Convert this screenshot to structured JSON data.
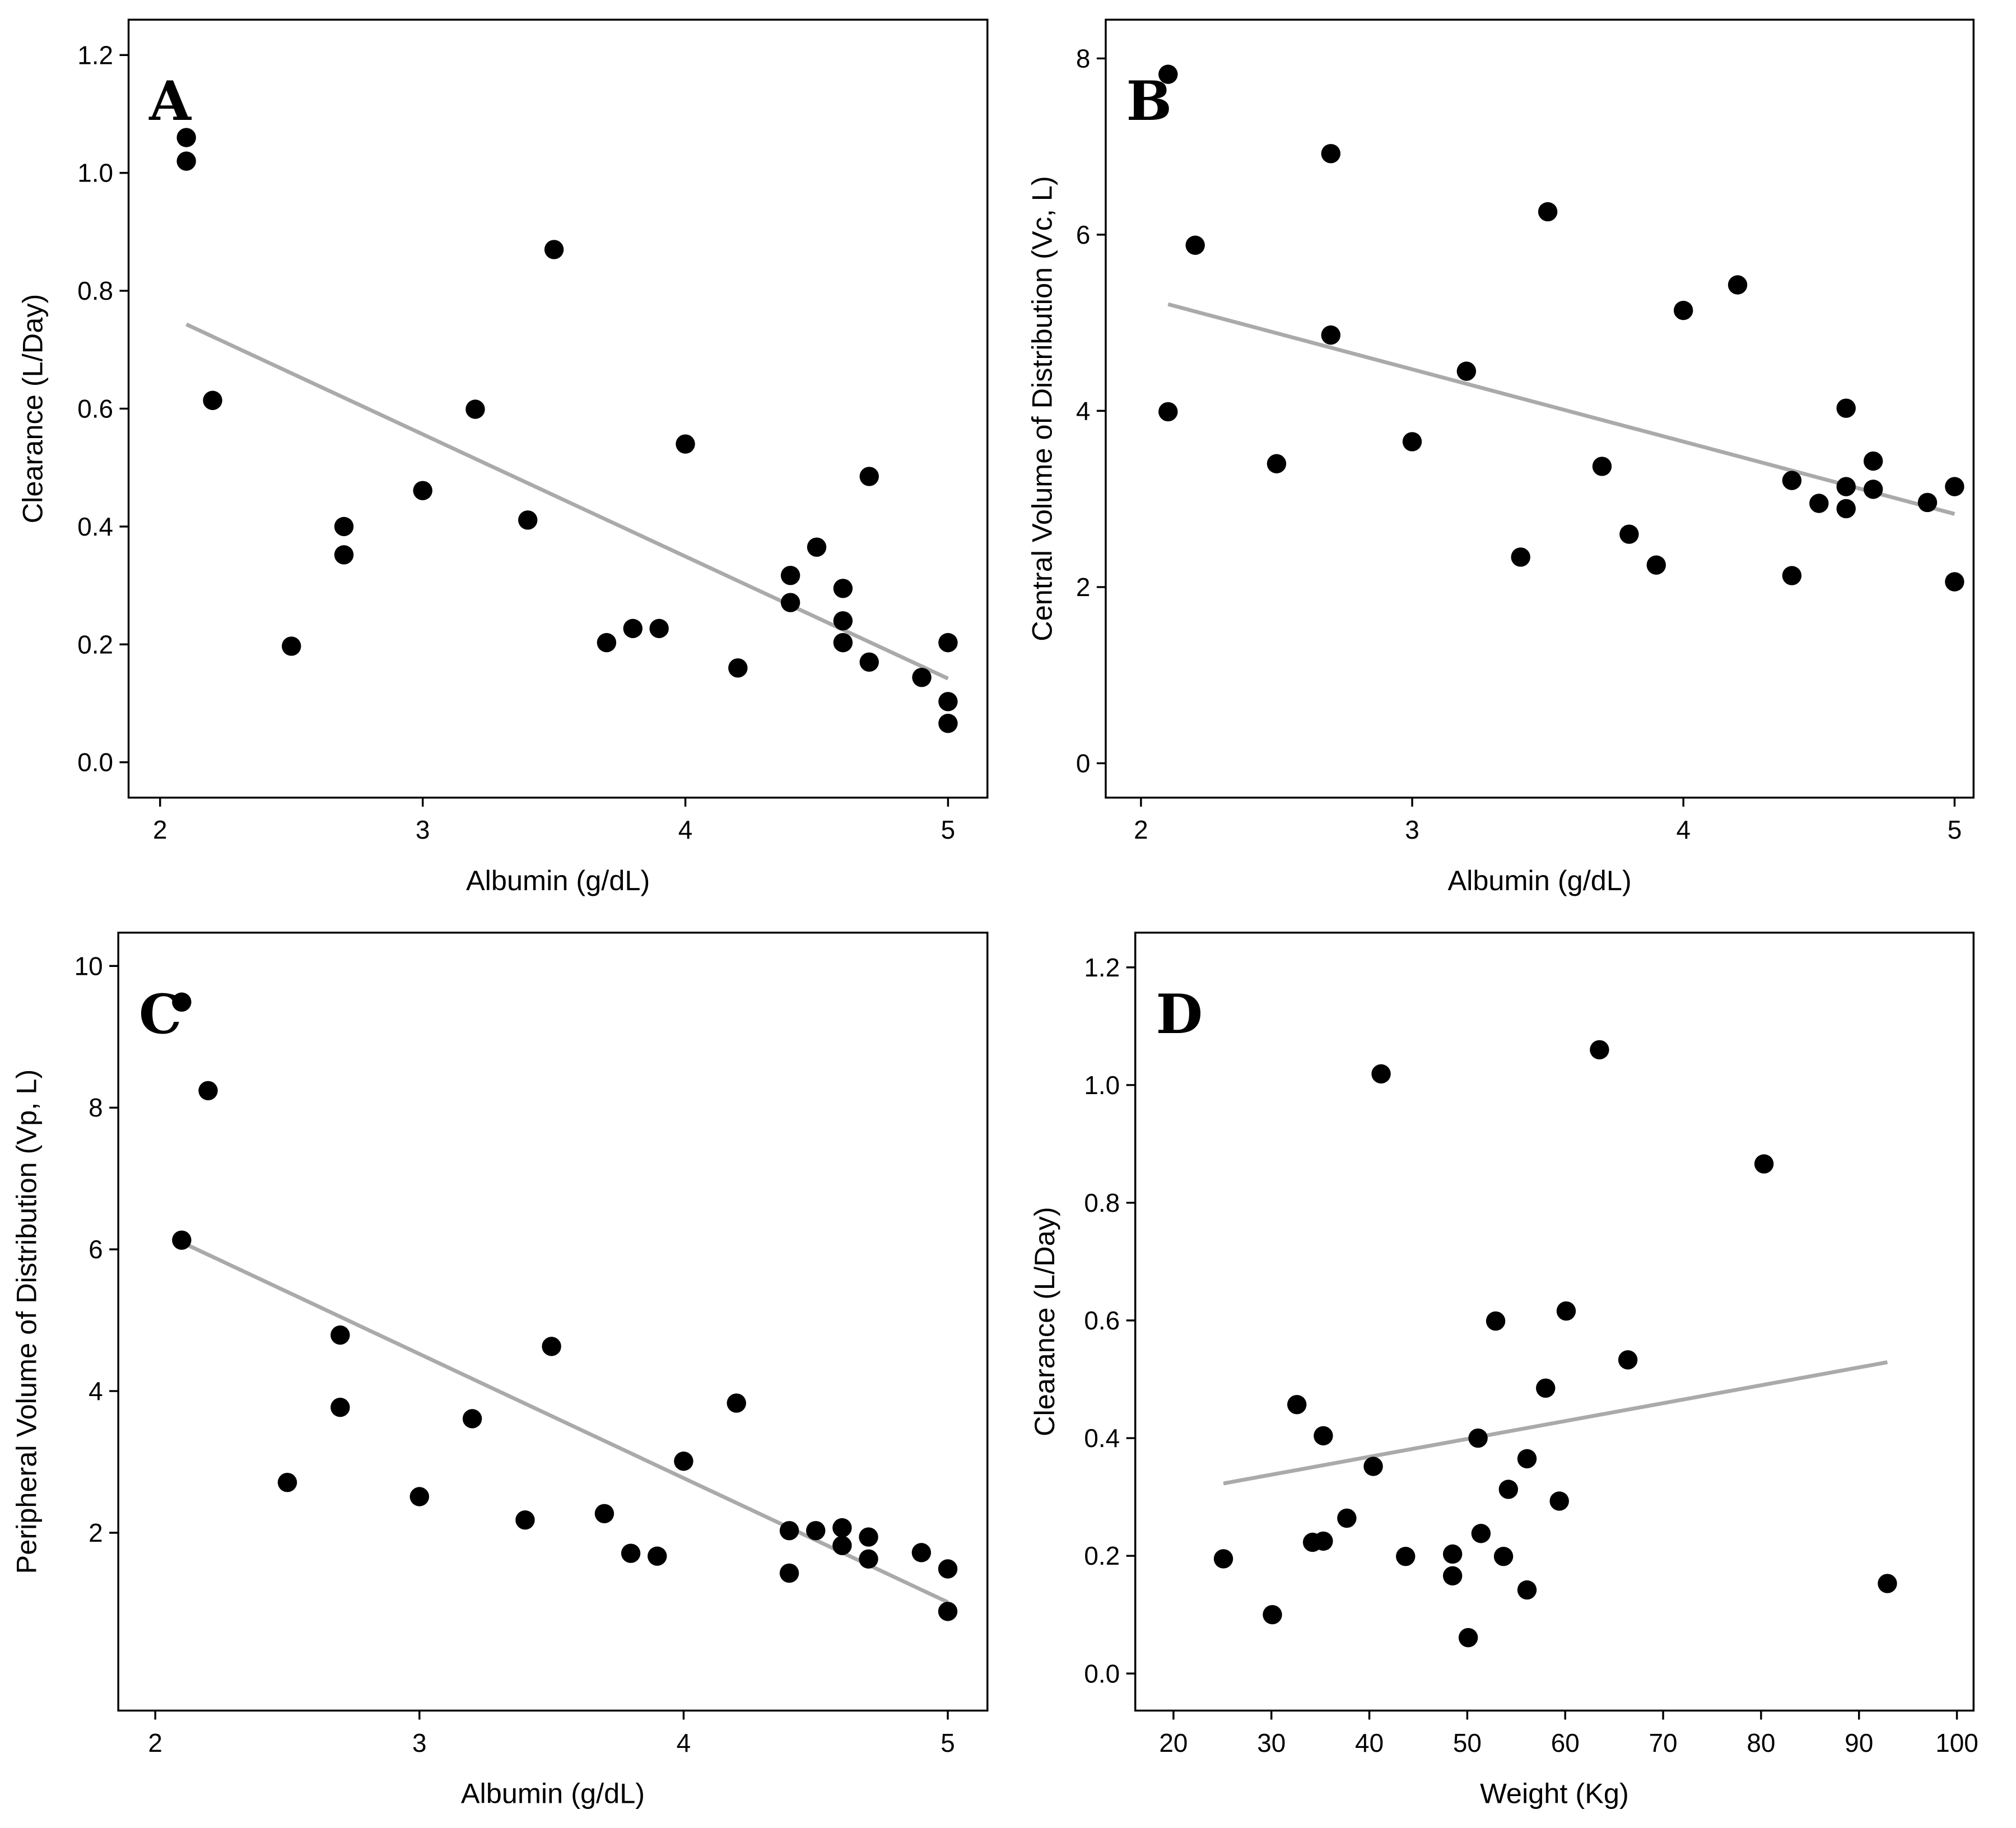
{
  "chart_data": [
    {
      "panel": "A",
      "type": "scatter",
      "xlabel": "Albumin (g/dL)",
      "ylabel": "Clearance (L/Day)",
      "xlim": [
        1.88,
        5.15
      ],
      "ylim": [
        -0.06,
        1.26
      ],
      "xticks": [
        2,
        3,
        4,
        5
      ],
      "xtick_labels": [
        "2",
        "3",
        "4",
        "5"
      ],
      "yticks": [
        0,
        0.2,
        0.4,
        0.6,
        0.8,
        1.0,
        1.2
      ],
      "ytick_labels": [
        "0.0",
        "0.2",
        "0.4",
        "0.6",
        "0.8",
        "1.0",
        "1.2"
      ],
      "points": [
        [
          2.1,
          1.06
        ],
        [
          2.1,
          1.02
        ],
        [
          2.2,
          0.614
        ],
        [
          2.5,
          0.197
        ],
        [
          2.7,
          0.4
        ],
        [
          2.7,
          0.352
        ],
        [
          3.0,
          0.461
        ],
        [
          3.2,
          0.599
        ],
        [
          3.4,
          0.411
        ],
        [
          3.5,
          0.87
        ],
        [
          3.7,
          0.203
        ],
        [
          3.8,
          0.227
        ],
        [
          3.9,
          0.227
        ],
        [
          4.0,
          0.54
        ],
        [
          4.2,
          0.16
        ],
        [
          4.4,
          0.317
        ],
        [
          4.4,
          0.271
        ],
        [
          4.5,
          0.365
        ],
        [
          4.6,
          0.295
        ],
        [
          4.6,
          0.24
        ],
        [
          4.6,
          0.203
        ],
        [
          4.7,
          0.485
        ],
        [
          4.7,
          0.17
        ],
        [
          4.9,
          0.144
        ],
        [
          5.0,
          0.203
        ],
        [
          5.0,
          0.103
        ],
        [
          5.0,
          0.066
        ]
      ],
      "trend": [
        [
          2.1,
          0.743
        ],
        [
          5.0,
          0.142
        ]
      ]
    },
    {
      "panel": "B",
      "type": "scatter",
      "xlabel": "Albumin (g/dL)",
      "ylabel": "Central Volume of Distribution (Vc, L)",
      "xlim": [
        1.87,
        5.07
      ],
      "ylim": [
        -0.39,
        8.44
      ],
      "xticks": [
        2,
        3,
        4,
        5
      ],
      "xtick_labels": [
        "2",
        "3",
        "4",
        "5"
      ],
      "yticks": [
        0,
        2,
        4,
        6,
        8
      ],
      "ytick_labels": [
        "0",
        "2",
        "4",
        "6",
        "8"
      ],
      "points": [
        [
          2.1,
          7.82
        ],
        [
          2.1,
          3.99
        ],
        [
          2.2,
          5.88
        ],
        [
          2.5,
          3.4
        ],
        [
          2.7,
          6.92
        ],
        [
          2.7,
          4.86
        ],
        [
          3.0,
          3.65
        ],
        [
          3.2,
          4.45
        ],
        [
          3.4,
          2.34
        ],
        [
          3.5,
          6.26
        ],
        [
          3.7,
          3.37
        ],
        [
          3.8,
          2.6
        ],
        [
          3.9,
          2.25
        ],
        [
          4.0,
          5.14
        ],
        [
          4.2,
          5.43
        ],
        [
          4.4,
          3.21
        ],
        [
          4.4,
          2.13
        ],
        [
          4.5,
          2.95
        ],
        [
          4.6,
          4.03
        ],
        [
          4.6,
          3.14
        ],
        [
          4.6,
          2.89
        ],
        [
          4.7,
          3.43
        ],
        [
          4.7,
          3.11
        ],
        [
          4.9,
          2.96
        ],
        [
          5.0,
          3.14
        ],
        [
          5.0,
          2.06
        ]
      ],
      "trend": [
        [
          2.1,
          5.21
        ],
        [
          5.0,
          2.83
        ]
      ]
    },
    {
      "panel": "C",
      "type": "scatter",
      "xlabel": "Albumin (g/dL)",
      "ylabel": "Peripheral Volume of Distribution (Vp, L)",
      "xlim": [
        1.86,
        5.15
      ],
      "ylim": [
        -0.51,
        10.47
      ],
      "xticks": [
        2,
        3,
        4,
        5
      ],
      "xtick_labels": [
        "2",
        "3",
        "4",
        "5"
      ],
      "yticks": [
        2,
        4,
        6,
        8,
        10
      ],
      "ytick_labels": [
        "2",
        "4",
        "6",
        "8",
        "10"
      ],
      "points": [
        [
          2.1,
          9.49
        ],
        [
          2.2,
          8.24
        ],
        [
          2.1,
          6.13
        ],
        [
          2.5,
          2.71
        ],
        [
          2.7,
          4.79
        ],
        [
          2.7,
          3.77
        ],
        [
          3.0,
          2.51
        ],
        [
          3.2,
          3.61
        ],
        [
          3.4,
          2.18
        ],
        [
          3.5,
          4.63
        ],
        [
          3.7,
          2.27
        ],
        [
          3.8,
          1.71
        ],
        [
          3.9,
          1.67
        ],
        [
          4.0,
          3.01
        ],
        [
          4.2,
          3.83
        ],
        [
          4.4,
          2.03
        ],
        [
          4.4,
          1.43
        ],
        [
          4.5,
          2.03
        ],
        [
          4.6,
          2.07
        ],
        [
          4.6,
          1.82
        ],
        [
          4.7,
          1.94
        ],
        [
          4.7,
          1.63
        ],
        [
          4.9,
          1.72
        ],
        [
          5.0,
          1.49
        ],
        [
          5.0,
          0.89
        ]
      ],
      "trend": [
        [
          2.1,
          6.1
        ],
        [
          5.0,
          1.02
        ]
      ]
    },
    {
      "panel": "D",
      "type": "scatter",
      "xlabel": "Weight (Kg)",
      "ylabel": "Clearance (L/Day)",
      "xlim": [
        16.1,
        101.7
      ],
      "ylim": [
        -0.063,
        1.259
      ],
      "xticks": [
        20,
        30,
        40,
        50,
        60,
        70,
        80,
        90,
        100
      ],
      "xtick_labels": [
        "20",
        "30",
        "40",
        "50",
        "60",
        "70",
        "80",
        "90",
        "100"
      ],
      "yticks": [
        0,
        0.2,
        0.4,
        0.6,
        0.8,
        1.0,
        1.2
      ],
      "ytick_labels": [
        "0.0",
        "0.2",
        "0.4",
        "0.6",
        "0.8",
        "1.0",
        "1.2"
      ],
      "points": [
        [
          25.1,
          0.195
        ],
        [
          30.1,
          0.1
        ],
        [
          32.6,
          0.457
        ],
        [
          34.2,
          0.223
        ],
        [
          35.3,
          0.404
        ],
        [
          35.3,
          0.225
        ],
        [
          37.7,
          0.264
        ],
        [
          40.4,
          0.352
        ],
        [
          41.2,
          1.019
        ],
        [
          43.7,
          0.199
        ],
        [
          48.5,
          0.203
        ],
        [
          48.5,
          0.166
        ],
        [
          50.1,
          0.061
        ],
        [
          51.1,
          0.4
        ],
        [
          51.4,
          0.238
        ],
        [
          52.9,
          0.599
        ],
        [
          53.7,
          0.199
        ],
        [
          54.2,
          0.313
        ],
        [
          56.1,
          0.365
        ],
        [
          56.1,
          0.142
        ],
        [
          58.0,
          0.485
        ],
        [
          59.4,
          0.293
        ],
        [
          60.1,
          0.616
        ],
        [
          63.5,
          1.06
        ],
        [
          66.4,
          0.533
        ],
        [
          80.3,
          0.866
        ],
        [
          92.9,
          0.153
        ]
      ],
      "trend": [
        [
          25.1,
          0.323
        ],
        [
          92.9,
          0.529
        ]
      ]
    }
  ],
  "colors": {
    "points": "#000000",
    "trend": "#aaaaaa",
    "frame": "#000000"
  },
  "grid": false
}
